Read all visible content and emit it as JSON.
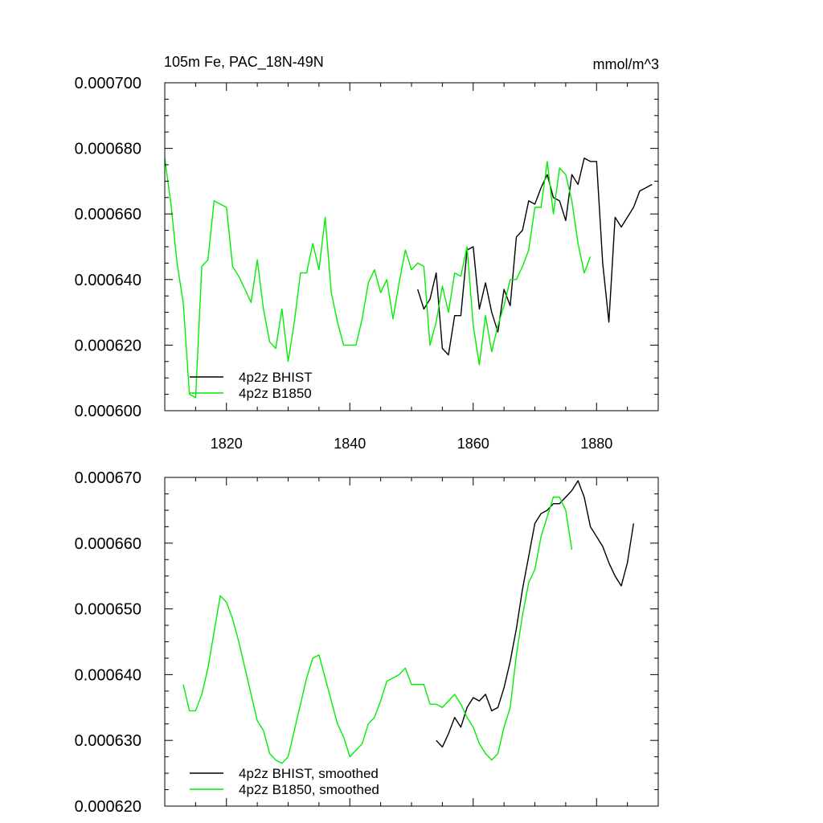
{
  "figure": {
    "title_left": "105m Fe, PAC_18N-49N",
    "title_right": "mmol/m^3"
  },
  "chart_data": [
    {
      "type": "line",
      "title": "105m Fe, PAC_18N-49N",
      "units": "mmol/m^3",
      "xlim": [
        1810,
        1890
      ],
      "ylim": [
        0.0006,
        0.0007
      ],
      "x_ticks": [
        1820,
        1840,
        1860,
        1880
      ],
      "y_ticks": [
        0.0006,
        0.00062,
        0.00064,
        0.00066,
        0.00068,
        0.0007
      ],
      "y_tick_labels": [
        "0.000600",
        "0.000620",
        "0.000640",
        "0.000660",
        "0.000680",
        "0.000700"
      ],
      "grid": false,
      "legend_position": "bottom-left",
      "series": [
        {
          "name": "4p2z BHIST",
          "color": "#000000",
          "x": [
            1851,
            1852,
            1853,
            1854,
            1855,
            1856,
            1857,
            1858,
            1859,
            1860,
            1861,
            1862,
            1863,
            1864,
            1865,
            1866,
            1867,
            1868,
            1869,
            1870,
            1871,
            1872,
            1873,
            1874,
            1875,
            1876,
            1877,
            1878,
            1879,
            1880,
            1881,
            1882,
            1883,
            1884,
            1885,
            1886,
            1887,
            1888,
            1889
          ],
          "y": [
            0.000637,
            0.000631,
            0.000634,
            0.000642,
            0.000619,
            0.000617,
            0.000629,
            0.000629,
            0.000649,
            0.00065,
            0.000631,
            0.000639,
            0.00063,
            0.000624,
            0.000637,
            0.000632,
            0.000653,
            0.000655,
            0.000664,
            0.000663,
            0.000668,
            0.000672,
            0.000665,
            0.000664,
            0.000658,
            0.000672,
            0.000669,
            0.000677,
            0.000676,
            0.000676,
            0.000645,
            0.000627,
            0.000659,
            0.000656,
            0.000659,
            0.000662,
            0.000667,
            0.000668,
            0.000669
          ]
        },
        {
          "name": "4p2z B1850",
          "color": "#00ee00",
          "x": [
            1810,
            1811,
            1812,
            1813,
            1814,
            1815,
            1816,
            1817,
            1818,
            1819,
            1820,
            1821,
            1822,
            1823,
            1824,
            1825,
            1826,
            1827,
            1828,
            1829,
            1830,
            1831,
            1832,
            1833,
            1834,
            1835,
            1836,
            1837,
            1838,
            1839,
            1840,
            1841,
            1842,
            1843,
            1844,
            1845,
            1846,
            1847,
            1848,
            1849,
            1850,
            1851,
            1852,
            1853,
            1854,
            1855,
            1856,
            1857,
            1858,
            1859,
            1860,
            1861,
            1862,
            1863,
            1864,
            1865,
            1866,
            1867,
            1868,
            1869,
            1870,
            1871,
            1872,
            1873,
            1874,
            1875,
            1876,
            1877,
            1878,
            1879
          ],
          "y": [
            0.000677,
            0.000663,
            0.000645,
            0.000633,
            0.000605,
            0.000604,
            0.000644,
            0.000646,
            0.000664,
            0.000663,
            0.000662,
            0.000644,
            0.000641,
            0.000637,
            0.000633,
            0.000646,
            0.000631,
            0.000621,
            0.000619,
            0.000631,
            0.000615,
            0.000627,
            0.000642,
            0.000642,
            0.000651,
            0.000643,
            0.000659,
            0.000636,
            0.000627,
            0.00062,
            0.00062,
            0.00062,
            0.000628,
            0.000639,
            0.000643,
            0.000636,
            0.00064,
            0.000628,
            0.000639,
            0.000649,
            0.000643,
            0.000645,
            0.000644,
            0.00062,
            0.000627,
            0.000638,
            0.00063,
            0.000642,
            0.000641,
            0.00065,
            0.000626,
            0.000614,
            0.000629,
            0.000618,
            0.000626,
            0.000632,
            0.00064,
            0.00064,
            0.000644,
            0.000649,
            0.000662,
            0.000662,
            0.000676,
            0.00066,
            0.000674,
            0.000672,
            0.000664,
            0.000651,
            0.000642,
            0.000647
          ]
        }
      ]
    },
    {
      "type": "line",
      "title": "",
      "xlim": [
        1810,
        1890
      ],
      "ylim": [
        0.00062,
        0.00067
      ],
      "x_ticks": [
        1820,
        1840,
        1860,
        1880
      ],
      "y_ticks": [
        0.00062,
        0.00063,
        0.00064,
        0.00065,
        0.00066,
        0.00067
      ],
      "y_tick_labels": [
        "0.000620",
        "0.000630",
        "0.000640",
        "0.000650",
        "0.000660",
        "0.000670"
      ],
      "grid": false,
      "legend_position": "bottom-left",
      "series": [
        {
          "name": "4p2z BHIST, smoothed",
          "color": "#000000",
          "x": [
            1854,
            1855,
            1856,
            1857,
            1858,
            1859,
            1860,
            1861,
            1862,
            1863,
            1864,
            1865,
            1866,
            1867,
            1868,
            1869,
            1870,
            1871,
            1872,
            1873,
            1874,
            1875,
            1876,
            1877,
            1878,
            1879,
            1880,
            1881,
            1882,
            1883,
            1884,
            1885,
            1886
          ],
          "y": [
            0.00063,
            0.000629,
            0.000631,
            0.0006335,
            0.000632,
            0.000635,
            0.0006365,
            0.000636,
            0.000637,
            0.0006345,
            0.000635,
            0.000638,
            0.000642,
            0.000647,
            0.000653,
            0.000658,
            0.000663,
            0.0006645,
            0.000665,
            0.000666,
            0.000666,
            0.000667,
            0.000668,
            0.0006695,
            0.000667,
            0.0006625,
            0.000661,
            0.0006595,
            0.000657,
            0.000655,
            0.0006535,
            0.000657,
            0.000663
          ]
        },
        {
          "name": "4p2z B1850, smoothed",
          "color": "#00ee00",
          "x": [
            1813,
            1814,
            1815,
            1816,
            1817,
            1818,
            1819,
            1820,
            1821,
            1822,
            1823,
            1824,
            1825,
            1826,
            1827,
            1828,
            1829,
            1830,
            1831,
            1832,
            1833,
            1834,
            1835,
            1836,
            1837,
            1838,
            1839,
            1840,
            1841,
            1842,
            1843,
            1844,
            1845,
            1846,
            1847,
            1848,
            1849,
            1850,
            1851,
            1852,
            1853,
            1854,
            1855,
            1856,
            1857,
            1858,
            1859,
            1860,
            1861,
            1862,
            1863,
            1864,
            1865,
            1866,
            1867,
            1868,
            1869,
            1870,
            1871,
            1872,
            1873,
            1874,
            1875,
            1876
          ],
          "y": [
            0.0006385,
            0.0006345,
            0.0006345,
            0.000637,
            0.000641,
            0.0006465,
            0.000652,
            0.000651,
            0.0006485,
            0.000645,
            0.000641,
            0.000637,
            0.000633,
            0.0006315,
            0.000628,
            0.000627,
            0.0006265,
            0.0006275,
            0.0006315,
            0.0006355,
            0.0006395,
            0.0006425,
            0.000643,
            0.0006395,
            0.000636,
            0.0006325,
            0.0006305,
            0.0006275,
            0.0006285,
            0.0006295,
            0.0006325,
            0.0006335,
            0.000636,
            0.000639,
            0.0006395,
            0.00064,
            0.000641,
            0.0006385,
            0.0006385,
            0.0006385,
            0.0006355,
            0.0006355,
            0.000635,
            0.000636,
            0.000637,
            0.0006355,
            0.0006335,
            0.000632,
            0.0006295,
            0.000628,
            0.000627,
            0.000628,
            0.000632,
            0.000635,
            0.000643,
            0.000649,
            0.000654,
            0.000656,
            0.000661,
            0.000664,
            0.000667,
            0.000667,
            0.000665,
            0.000659
          ]
        }
      ]
    }
  ]
}
